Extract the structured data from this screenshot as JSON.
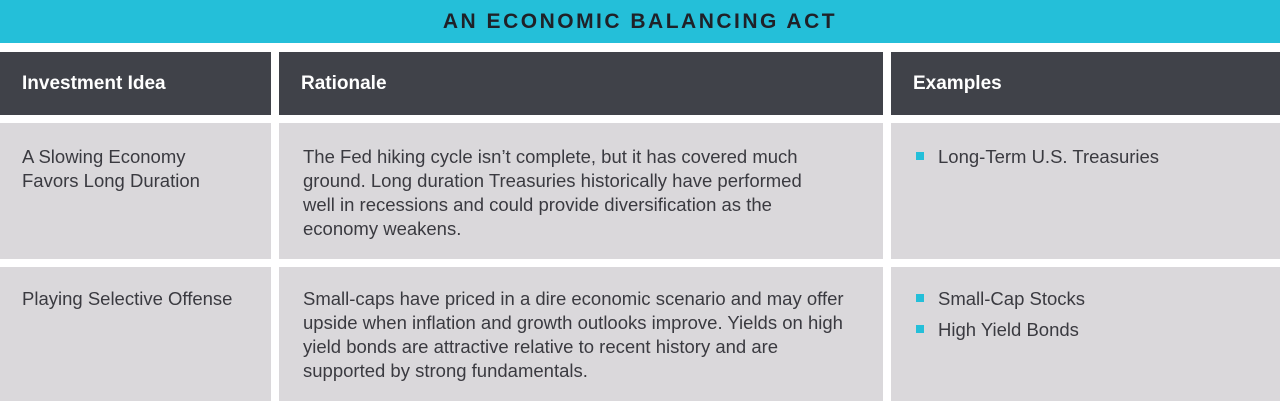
{
  "title": "AN ECONOMIC BALANCING ACT",
  "headers": [
    "Investment Idea",
    "Rationale",
    "Examples"
  ],
  "rows": [
    {
      "idea": "A Slowing Economy Favors Long Duration",
      "rationale": "The Fed hiking cycle isn’t complete, but it has covered much ground. Long duration Treasuries historically have performed well in recessions and could provide diversification as the economy weakens.",
      "examples": [
        "Long-Term U.S. Treasuries"
      ]
    },
    {
      "idea": "Playing Selective Offense",
      "rationale": "Small-caps have priced in a dire economic scenario and may offer upside when inflation and growth outlooks improve. Yields on high yield bonds are attractive relative to recent history and are supported by strong fundamentals.",
      "examples": [
        "Small-Cap Stocks",
        "High Yield Bonds"
      ]
    }
  ],
  "colors": {
    "accent": "#24bfd9",
    "header": "#404249",
    "cell": "#dad8db"
  }
}
